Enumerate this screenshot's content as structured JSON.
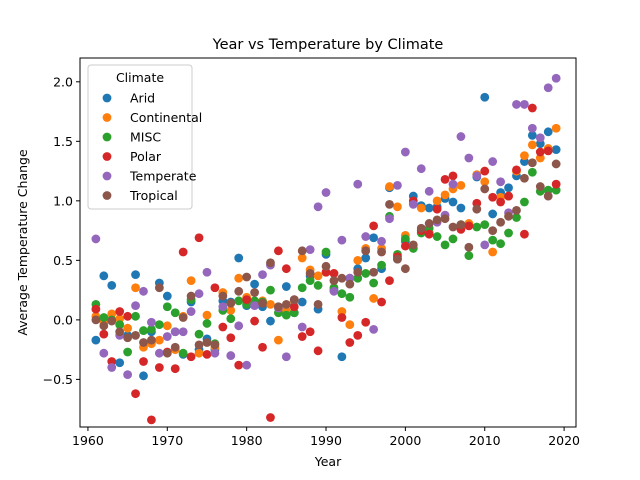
{
  "chart_data": {
    "type": "scatter",
    "title": "Year vs Temperature by Climate",
    "xlabel": "Year",
    "ylabel": "Average Temperature Change",
    "xlim": [
      1959,
      2021.5
    ],
    "ylim": [
      -0.9,
      2.2
    ],
    "xticks": [
      "1960",
      "1970",
      "1980",
      "1990",
      "2000",
      "2010",
      "2020"
    ],
    "yticks": [
      "−0.5",
      "0.0",
      "0.5",
      "1.0",
      "1.5",
      "2.0"
    ],
    "xtick_values": [
      1960,
      1970,
      1980,
      1990,
      2000,
      2010,
      2020
    ],
    "ytick_values": [
      -0.5,
      0.0,
      0.5,
      1.0,
      1.5,
      2.0
    ],
    "grid": false,
    "legend": {
      "title": "Climate",
      "placement": "upper-left"
    },
    "series": [
      {
        "name": "Arid",
        "color": "#1f77b4",
        "x": [
          1961,
          1962,
          1963,
          1964,
          1965,
          1966,
          1967,
          1968,
          1969,
          1970,
          1971,
          1972,
          1973,
          1974,
          1975,
          1976,
          1977,
          1978,
          1979,
          1980,
          1981,
          1982,
          1983,
          1984,
          1985,
          1986,
          1987,
          1988,
          1989,
          1990,
          1991,
          1992,
          1993,
          1994,
          1995,
          1996,
          1997,
          1998,
          1999,
          2000,
          2001,
          2002,
          2003,
          2004,
          2005,
          2006,
          2007,
          2008,
          2009,
          2010,
          2011,
          2012,
          2013,
          2014,
          2015,
          2016,
          2017,
          2018,
          2019
        ],
        "y": [
          -0.17,
          0.37,
          0.29,
          -0.36,
          -0.13,
          0.38,
          -0.47,
          -0.1,
          0.31,
          0.2,
          -0.1,
          -0.29,
          0.15,
          -0.25,
          -0.16,
          -0.25,
          0.16,
          0.15,
          0.52,
          0.12,
          0.3,
          0.11,
          -0.01,
          0.11,
          0.28,
          0.06,
          0.15,
          0.37,
          0.09,
          0.55,
          0.25,
          -0.31,
          0.35,
          0.43,
          0.52,
          0.69,
          0.43,
          1.11,
          0.51,
          0.66,
          1.04,
          0.96,
          0.94,
          0.95,
          1.02,
          0.99,
          0.94,
          0.8,
          1.2,
          1.87,
          0.89,
          1.07,
          1.11,
          1.21,
          1.33,
          1.55,
          1.48,
          1.58,
          1.43
        ]
      },
      {
        "name": "Continental",
        "color": "#ff7f0e",
        "x": [
          1961,
          1962,
          1963,
          1964,
          1965,
          1966,
          1967,
          1968,
          1969,
          1970,
          1971,
          1972,
          1973,
          1974,
          1975,
          1976,
          1977,
          1978,
          1979,
          1980,
          1981,
          1982,
          1983,
          1984,
          1985,
          1986,
          1987,
          1988,
          1989,
          1990,
          1991,
          1992,
          1993,
          1994,
          1995,
          1996,
          1997,
          1998,
          1999,
          2000,
          2001,
          2002,
          2003,
          2004,
          2005,
          2006,
          2007,
          2008,
          2009,
          2010,
          2011,
          2012,
          2013,
          2014,
          2015,
          2016,
          2017,
          2018,
          2019
        ],
        "y": [
          0.03,
          -0.02,
          0.05,
          0.01,
          -0.07,
          0.27,
          -0.23,
          -0.2,
          -0.17,
          -0.05,
          -0.25,
          0.03,
          0.33,
          -0.28,
          0.04,
          -0.23,
          0.23,
          0.08,
          0.35,
          0.19,
          0.14,
          0.16,
          0.13,
          -0.17,
          0.08,
          0.16,
          0.52,
          0.42,
          0.37,
          0.4,
          0.39,
          0.07,
          -0.04,
          0.5,
          0.6,
          0.18,
          0.6,
          1.12,
          0.95,
          0.71,
          0.98,
          0.94,
          0.73,
          1.0,
          1.05,
          1.1,
          1.13,
          0.81,
          1.22,
          1.16,
          0.57,
          1.03,
          1.04,
          1.25,
          1.38,
          1.47,
          1.36,
          1.44,
          1.61
        ]
      },
      {
        "name": "MISC",
        "color": "#2ca02c",
        "x": [
          1961,
          1962,
          1963,
          1964,
          1965,
          1966,
          1967,
          1968,
          1969,
          1970,
          1971,
          1972,
          1973,
          1974,
          1975,
          1976,
          1977,
          1978,
          1979,
          1980,
          1981,
          1982,
          1983,
          1984,
          1985,
          1986,
          1987,
          1988,
          1989,
          1990,
          1991,
          1992,
          1993,
          1994,
          1995,
          1996,
          1997,
          1998,
          1999,
          2000,
          2001,
          2002,
          2003,
          2004,
          2005,
          2006,
          2007,
          2008,
          2009,
          2010,
          2011,
          2012,
          2013,
          2014,
          2015,
          2016,
          2017,
          2018,
          2019
        ],
        "y": [
          0.13,
          0.02,
          0.0,
          -0.04,
          -0.27,
          0.03,
          -0.09,
          -0.08,
          -0.04,
          0.11,
          0.06,
          -0.28,
          0.17,
          -0.12,
          -0.03,
          -0.2,
          0.08,
          0.01,
          0.16,
          0.13,
          0.16,
          0.15,
          0.25,
          0.06,
          0.04,
          0.06,
          0.27,
          0.33,
          0.29,
          0.57,
          0.27,
          0.22,
          0.19,
          0.35,
          0.39,
          0.31,
          0.46,
          0.87,
          0.55,
          0.68,
          0.6,
          0.73,
          0.77,
          0.7,
          0.63,
          0.68,
          0.8,
          0.54,
          0.78,
          0.8,
          0.67,
          0.64,
          0.73,
          0.86,
          0.99,
          1.24,
          1.08,
          1.09,
          1.09
        ]
      },
      {
        "name": "Polar",
        "color": "#d62728",
        "x": [
          1961,
          1962,
          1963,
          1964,
          1965,
          1966,
          1967,
          1968,
          1969,
          1970,
          1971,
          1972,
          1973,
          1974,
          1975,
          1976,
          1977,
          1978,
          1979,
          1980,
          1981,
          1982,
          1983,
          1984,
          1985,
          1986,
          1987,
          1988,
          1989,
          1990,
          1991,
          1992,
          1993,
          1994,
          1995,
          1996,
          1997,
          1998,
          1999,
          2000,
          2001,
          2002,
          2003,
          2004,
          2005,
          2006,
          2007,
          2008,
          2009,
          2010,
          2011,
          2012,
          2013,
          2014,
          2015,
          2016,
          2017,
          2018,
          2019
        ],
        "y": [
          0.09,
          -0.12,
          -0.35,
          0.07,
          0.03,
          -0.62,
          -0.35,
          -0.84,
          -0.4,
          -0.27,
          -0.41,
          0.57,
          -0.31,
          0.69,
          -0.29,
          0.27,
          -0.06,
          -0.15,
          -0.38,
          0.17,
          -0.01,
          -0.23,
          -0.82,
          0.58,
          0.43,
          0.11,
          -0.14,
          -0.1,
          -0.26,
          0.4,
          0.39,
          0.02,
          -0.19,
          -0.13,
          -0.02,
          0.79,
          0.15,
          0.33,
          0.53,
          0.62,
          1.0,
          0.75,
          0.72,
          0.93,
          1.18,
          1.21,
          0.76,
          0.79,
          0.98,
          1.25,
          1.03,
          0.99,
          1.04,
          1.26,
          0.72,
          1.78,
          1.41,
          1.42,
          1.14
        ]
      },
      {
        "name": "Temperate",
        "color": "#9467bd",
        "x": [
          1961,
          1962,
          1963,
          1964,
          1965,
          1966,
          1967,
          1968,
          1969,
          1970,
          1971,
          1972,
          1973,
          1974,
          1975,
          1976,
          1977,
          1978,
          1979,
          1980,
          1981,
          1982,
          1983,
          1984,
          1985,
          1986,
          1987,
          1988,
          1989,
          1990,
          1991,
          1992,
          1993,
          1994,
          1995,
          1996,
          1997,
          1998,
          1999,
          2000,
          2001,
          2002,
          2003,
          2004,
          2005,
          2006,
          2007,
          2008,
          2009,
          2010,
          2011,
          2012,
          2013,
          2014,
          2015,
          2016,
          2017,
          2018,
          2019
        ],
        "y": [
          0.68,
          -0.28,
          -0.4,
          -0.13,
          -0.46,
          0.12,
          0.24,
          -0.02,
          -0.28,
          -0.14,
          -0.1,
          -0.1,
          0.07,
          0.22,
          0.4,
          -0.28,
          0.11,
          -0.3,
          -0.05,
          -0.38,
          0.12,
          0.38,
          0.46,
          0.1,
          -0.31,
          0.17,
          -0.06,
          0.59,
          0.95,
          1.07,
          0.24,
          0.67,
          0.35,
          1.14,
          0.7,
          -0.08,
          0.66,
          0.85,
          1.13,
          1.41,
          0.97,
          1.27,
          1.08,
          0.82,
          0.88,
          1.14,
          1.54,
          1.36,
          1.21,
          0.63,
          1.33,
          1.16,
          0.9,
          1.81,
          1.81,
          1.61,
          1.53,
          1.95,
          2.03
        ]
      },
      {
        "name": "Tropical",
        "color": "#8c564b",
        "x": [
          1961,
          1962,
          1963,
          1964,
          1965,
          1966,
          1967,
          1968,
          1969,
          1970,
          1971,
          1972,
          1973,
          1974,
          1975,
          1976,
          1977,
          1978,
          1979,
          1980,
          1981,
          1982,
          1983,
          1984,
          1985,
          1986,
          1987,
          1988,
          1989,
          1990,
          1991,
          1992,
          1993,
          1994,
          1995,
          1996,
          1997,
          1998,
          1999,
          2000,
          2001,
          2002,
          2003,
          2004,
          2005,
          2006,
          2007,
          2008,
          2009,
          2010,
          2011,
          2012,
          2013,
          2014,
          2015,
          2016,
          2017,
          2018,
          2019
        ],
        "y": [
          0.0,
          -0.05,
          -0.01,
          -0.1,
          -0.15,
          -0.13,
          -0.19,
          -0.17,
          0.27,
          -0.28,
          -0.23,
          0.02,
          0.2,
          -0.21,
          -0.19,
          -0.21,
          0.2,
          0.14,
          0.24,
          0.36,
          0.23,
          0.14,
          0.48,
          0.11,
          0.13,
          0.17,
          0.58,
          0.39,
          0.13,
          0.45,
          0.33,
          0.35,
          0.3,
          0.4,
          0.58,
          0.4,
          0.57,
          0.97,
          0.51,
          0.43,
          0.63,
          0.77,
          0.81,
          0.84,
          0.85,
          0.78,
          0.8,
          0.61,
          0.93,
          1.1,
          0.75,
          0.82,
          0.87,
          0.92,
          1.19,
          1.32,
          1.12,
          1.04,
          1.31
        ]
      }
    ]
  }
}
